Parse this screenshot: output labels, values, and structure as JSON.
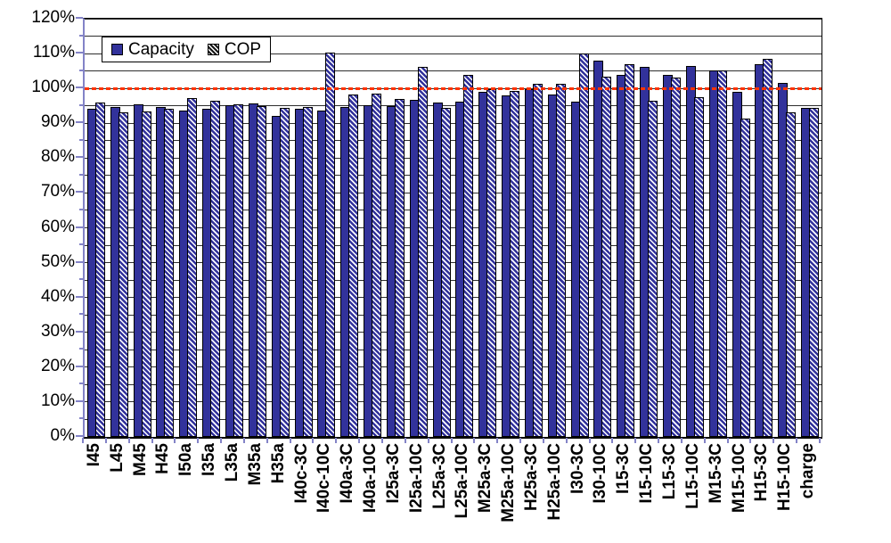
{
  "chart_data": {
    "type": "bar",
    "title": "",
    "xlabel": "",
    "ylabel": "",
    "ylim": [
      0,
      120
    ],
    "y_tick_values": [
      0,
      10,
      20,
      30,
      40,
      50,
      60,
      70,
      80,
      90,
      100,
      110,
      120
    ],
    "y_tick_labels": [
      "0%",
      "10%",
      "20%",
      "30%",
      "40%",
      "50%",
      "60%",
      "70%",
      "80%",
      "90%",
      "100%",
      "110%",
      "120%"
    ],
    "minor_gridline_step_pct": 5,
    "grid": "on",
    "legend_position": "top-left",
    "categories": [
      "I45",
      "L45",
      "M45",
      "H45",
      "I50a",
      "I35a",
      "L35a",
      "M35a",
      "H35a",
      "I40c-3C",
      "I40c-10C",
      "I40a-3C",
      "I40a-10C",
      "I25a-3C",
      "I25a-10C",
      "L25a-3C",
      "L25a-10C",
      "M25a-3C",
      "M25a-10C",
      "H25a-3C",
      "H25a-10C",
      "I30-3C",
      "I30-10C",
      "I15-3C",
      "I15-10C",
      "L15-3C",
      "L15-10C",
      "M15-3C",
      "M15-10C",
      "H15-3C",
      "H15-10C",
      "charge"
    ],
    "series": [
      {
        "name": "Capacity",
        "style": "solid",
        "values": [
          94.2,
          94.7,
          95.5,
          94.7,
          93.7,
          94.1,
          95.2,
          95.8,
          92.2,
          94.1,
          93.7,
          94.8,
          95.2,
          94.9,
          96.8,
          95.9,
          96.2,
          99.0,
          97.9,
          99.7,
          98.3,
          96.2,
          108.0,
          103.9,
          106.1,
          103.9,
          106.4,
          105.1,
          99.0,
          107.0,
          101.7,
          94.5
        ]
      },
      {
        "name": "COP",
        "style": "hatched",
        "values": [
          96.0,
          93.2,
          93.5,
          94.1,
          97.3,
          96.4,
          95.4,
          94.9,
          94.3,
          94.8,
          110.3,
          98.2,
          98.5,
          96.9,
          106.3,
          94.4,
          104.0,
          99.7,
          99.3,
          101.3,
          101.3,
          110.0,
          103.5,
          106.9,
          96.5,
          103.0,
          97.5,
          105.1,
          91.3,
          108.6,
          93.2,
          94.5
        ]
      }
    ],
    "reference_line": {
      "value": 100,
      "style": "dashed",
      "color": "#ff3300"
    },
    "colors": {
      "capacity_fill": "#32329b",
      "hatch_stripe": "#32329b",
      "hatch_bg": "#ffffff",
      "gridline": "#2e2e2e",
      "axis_spine": "#8383c7",
      "plot_border": "#000000",
      "legend_cop_swatch_dark": "#161616"
    }
  }
}
